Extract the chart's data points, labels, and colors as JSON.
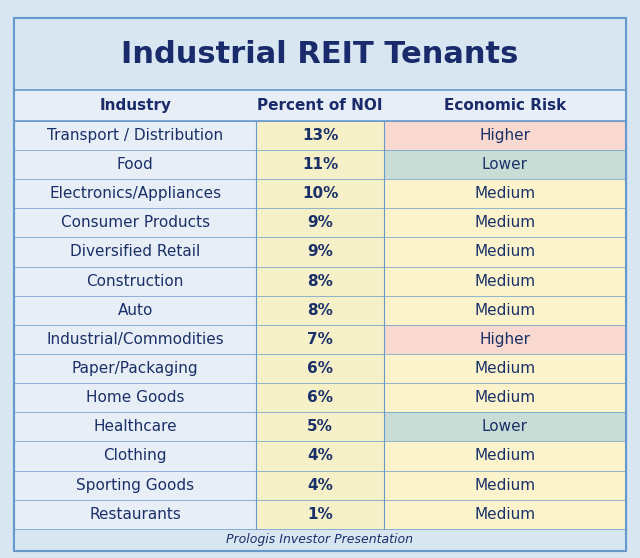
{
  "title": "Industrial REIT Tenants",
  "subtitle": "Prologis Investor Presentation",
  "col_headers": [
    "Industry",
    "Percent of NOI",
    "Economic Risk"
  ],
  "rows": [
    [
      "Transport / Distribution",
      "13%",
      "Higher"
    ],
    [
      "Food",
      "11%",
      "Lower"
    ],
    [
      "Electronics/Appliances",
      "10%",
      "Medium"
    ],
    [
      "Consumer Products",
      "9%",
      "Medium"
    ],
    [
      "Diversified Retail",
      "9%",
      "Medium"
    ],
    [
      "Construction",
      "8%",
      "Medium"
    ],
    [
      "Auto",
      "8%",
      "Medium"
    ],
    [
      "Industrial/Commodities",
      "7%",
      "Higher"
    ],
    [
      "Paper/Packaging",
      "6%",
      "Medium"
    ],
    [
      "Home Goods",
      "6%",
      "Medium"
    ],
    [
      "Healthcare",
      "5%",
      "Lower"
    ],
    [
      "Clothing",
      "4%",
      "Medium"
    ],
    [
      "Sporting Goods",
      "4%",
      "Medium"
    ],
    [
      "Restaurants",
      "1%",
      "Medium"
    ]
  ],
  "col1_bg": "#F5F0C8",
  "risk_colors": {
    "Higher": "#F9D8D0",
    "Lower": "#C8DDD5",
    "Medium": "#FAF3CC"
  },
  "industry_bg": "#E8EEF5",
  "header_bg": "#E8EEF5",
  "outer_bg": "#D8E6F2",
  "title_color": "#1A2B6B",
  "text_color": "#1A3068",
  "header_text_color": "#1A2B6B",
  "border_color": "#6699CC",
  "title_fontsize": 22,
  "header_fontsize": 11,
  "cell_fontsize": 11,
  "footer_fontsize": 9
}
